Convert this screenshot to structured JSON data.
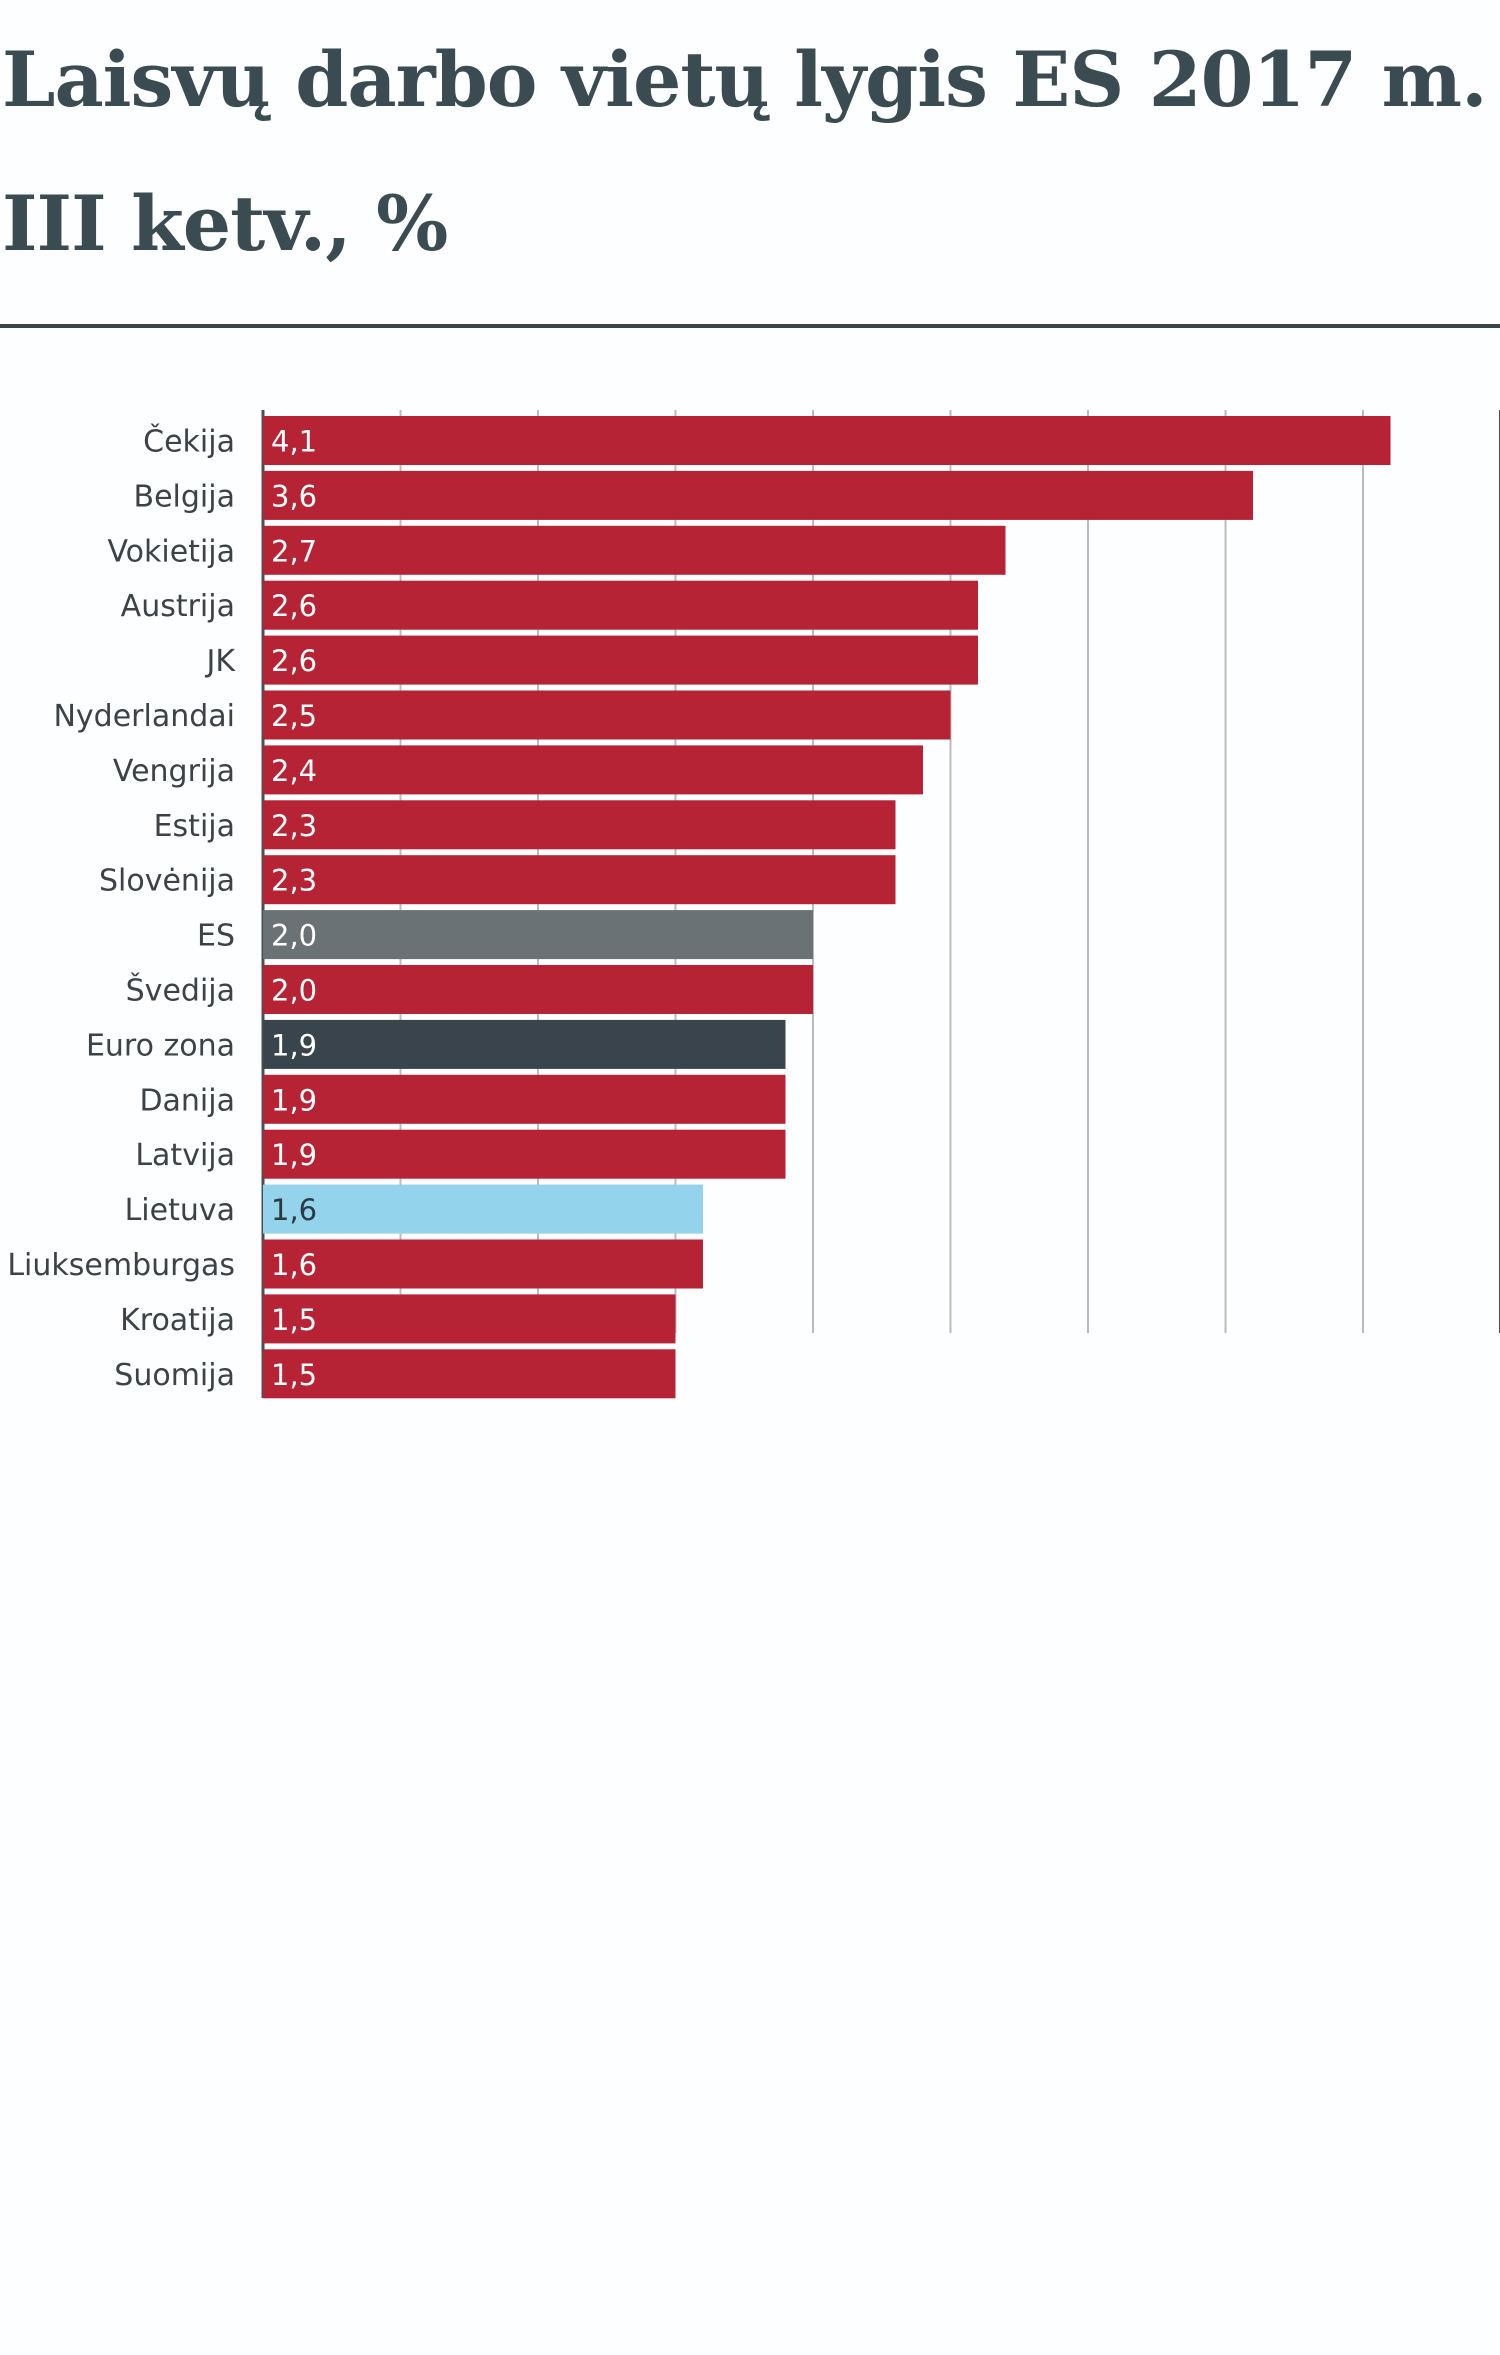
{
  "title": "Laisvų darbo vietų lygis ES 2017 m. III ketv., %",
  "colors": {
    "country": "#b52335",
    "eu": "#6b7275",
    "eurozone": "#3a444c",
    "lithuania": "#93d3ec",
    "grid": "#b9bcbf",
    "title": "#3b4b52"
  },
  "chart_data": {
    "type": "bar",
    "orientation": "horizontal",
    "title": "Laisvų darbo vietų lygis ES 2017 m. III ketv., %",
    "xlabel": "",
    "ylabel": "",
    "xlim": [
      0,
      4.5
    ],
    "grid": true,
    "value_format": "decimal comma",
    "categories": [
      "Čekija",
      "Belgija",
      "Vokietija",
      "Austrija",
      "JK",
      "Nyderlandai",
      "Vengrija",
      "Estija",
      "Slovėnija",
      "ES",
      "Švedija",
      "Euro zona",
      "Danija",
      "Latvija",
      "Lietuva",
      "Liuksemburgas",
      "Kroatija",
      "Suomija"
    ],
    "values": [
      4.1,
      3.6,
      2.7,
      2.6,
      2.6,
      2.5,
      2.4,
      2.3,
      2.3,
      2.0,
      2.0,
      1.9,
      1.9,
      1.9,
      1.6,
      1.6,
      1.5,
      1.5
    ],
    "labels": [
      "4,1",
      "3,6",
      "2,7",
      "2,6",
      "2,6",
      "2,5",
      "2,4",
      "2,3",
      "2,3",
      "2,0",
      "2,0",
      "1,9",
      "1,9",
      "1,9",
      "1,6",
      "1,6",
      "1,5",
      "1,5"
    ],
    "bar_roles": [
      "country",
      "country",
      "country",
      "country",
      "country",
      "country",
      "country",
      "country",
      "country",
      "eu",
      "country",
      "eurozone",
      "country",
      "country",
      "lithuania",
      "country",
      "country",
      "country"
    ]
  }
}
